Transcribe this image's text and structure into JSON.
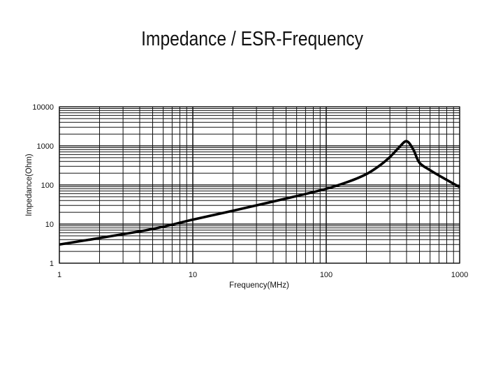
{
  "chart_data": {
    "type": "line",
    "title": "Impedance / ESR-Frequency",
    "xlabel": "Frequency(MHz)",
    "ylabel": "Impedance(Ohm)",
    "x_scale": "log",
    "y_scale": "log",
    "xlim": [
      1,
      1000
    ],
    "ylim": [
      1,
      10000
    ],
    "x_ticks": [
      "1",
      "10",
      "100",
      "1000"
    ],
    "y_ticks": [
      "1",
      "10",
      "100",
      "1000",
      "10000"
    ],
    "grid": true,
    "series": [
      {
        "color": "#000000",
        "x": [
          1,
          2,
          5,
          10,
          20,
          50,
          100,
          150,
          200,
          250,
          300,
          350,
          400,
          450,
          500,
          600,
          700,
          800,
          1000
        ],
        "y": [
          3,
          4.4,
          7.5,
          13,
          22,
          45,
          80,
          125,
          190,
          310,
          520,
          900,
          1320,
          800,
          370,
          240,
          175,
          135,
          88
        ]
      }
    ]
  }
}
